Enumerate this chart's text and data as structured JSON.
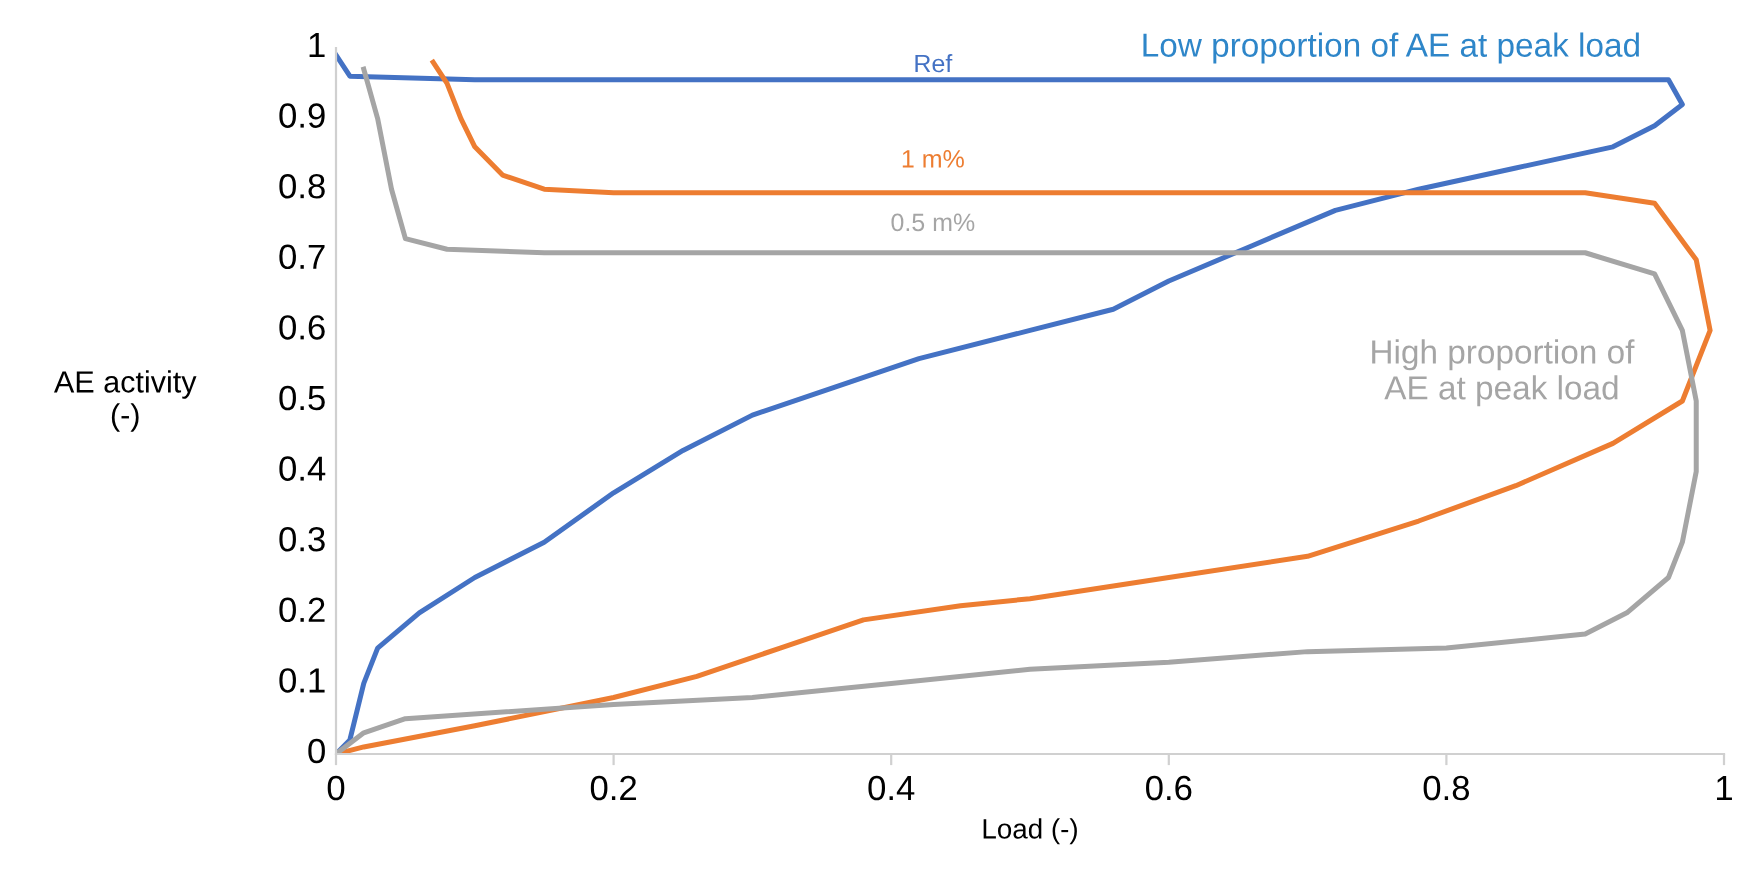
{
  "chart_data": {
    "type": "line",
    "xlabel": "Load (-)",
    "ylabel": "AE activity\n(-)",
    "xlim": [
      0,
      1
    ],
    "ylim": [
      0,
      1
    ],
    "xticks": [
      0,
      0.2,
      0.4,
      0.6,
      0.8,
      1
    ],
    "yticks": [
      0,
      0.1,
      0.2,
      0.3,
      0.4,
      0.5,
      0.6,
      0.7,
      0.8,
      0.9,
      1
    ],
    "grid": false,
    "legend": false,
    "marker": "none",
    "line_style": "solid",
    "annotations": [
      "Low proportion of AE at peak load",
      "High proportion of\nAE at peak load"
    ],
    "series": [
      {
        "name": "Ref",
        "color": "#4472c4",
        "x": [
          0,
          0.01,
          0.02,
          0.03,
          0.06,
          0.1,
          0.15,
          0.2,
          0.25,
          0.3,
          0.36,
          0.42,
          0.5,
          0.56,
          0.6,
          0.66,
          0.72,
          0.78,
          0.85,
          0.92,
          0.95,
          0.97,
          0.96,
          0.6,
          0.1,
          0.01,
          0
        ],
        "values": [
          0,
          0.02,
          0.1,
          0.15,
          0.2,
          0.25,
          0.3,
          0.37,
          0.43,
          0.48,
          0.52,
          0.56,
          0.6,
          0.63,
          0.67,
          0.72,
          0.77,
          0.8,
          0.83,
          0.86,
          0.89,
          0.92,
          0.955,
          0.955,
          0.955,
          0.96,
          0.99
        ]
      },
      {
        "name": "1 m%",
        "color": "#ed7d31",
        "x": [
          0,
          0.02,
          0.1,
          0.2,
          0.26,
          0.32,
          0.38,
          0.45,
          0.5,
          0.6,
          0.7,
          0.78,
          0.85,
          0.92,
          0.97,
          0.99,
          0.98,
          0.95,
          0.9,
          0.5,
          0.2,
          0.15,
          0.12,
          0.1,
          0.09,
          0.08,
          0.07
        ],
        "values": [
          0,
          0.01,
          0.04,
          0.08,
          0.11,
          0.15,
          0.19,
          0.21,
          0.22,
          0.25,
          0.28,
          0.33,
          0.38,
          0.44,
          0.5,
          0.6,
          0.7,
          0.78,
          0.795,
          0.795,
          0.795,
          0.8,
          0.82,
          0.86,
          0.9,
          0.95,
          0.98
        ]
      },
      {
        "name": "0.5 m%",
        "color": "#a5a5a5",
        "x": [
          0,
          0.02,
          0.05,
          0.2,
          0.3,
          0.4,
          0.5,
          0.6,
          0.7,
          0.8,
          0.9,
          0.93,
          0.96,
          0.97,
          0.98,
          0.98,
          0.97,
          0.95,
          0.9,
          0.5,
          0.15,
          0.08,
          0.05,
          0.04,
          0.03,
          0.02
        ],
        "values": [
          0,
          0.03,
          0.05,
          0.07,
          0.08,
          0.1,
          0.12,
          0.13,
          0.145,
          0.15,
          0.17,
          0.2,
          0.25,
          0.3,
          0.4,
          0.5,
          0.6,
          0.68,
          0.71,
          0.71,
          0.71,
          0.715,
          0.73,
          0.8,
          0.9,
          0.97
        ]
      }
    ]
  }
}
